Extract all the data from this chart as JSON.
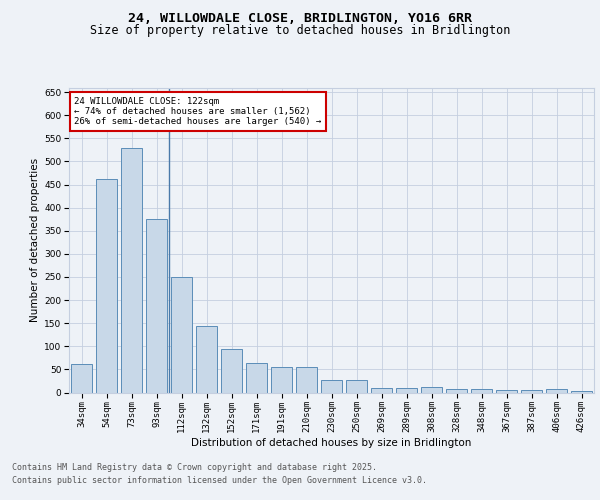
{
  "title_line1": "24, WILLOWDALE CLOSE, BRIDLINGTON, YO16 6RR",
  "title_line2": "Size of property relative to detached houses in Bridlington",
  "xlabel": "Distribution of detached houses by size in Bridlington",
  "ylabel": "Number of detached properties",
  "categories": [
    "34sqm",
    "54sqm",
    "73sqm",
    "93sqm",
    "112sqm",
    "132sqm",
    "152sqm",
    "171sqm",
    "191sqm",
    "210sqm",
    "230sqm",
    "250sqm",
    "269sqm",
    "289sqm",
    "308sqm",
    "328sqm",
    "348sqm",
    "367sqm",
    "387sqm",
    "406sqm",
    "426sqm"
  ],
  "values": [
    62,
    463,
    530,
    375,
    250,
    143,
    94,
    63,
    56,
    55,
    28,
    27,
    10,
    10,
    11,
    8,
    8,
    5,
    5,
    7,
    4
  ],
  "bar_color": "#c8d8e8",
  "bar_edge_color": "#5b8db8",
  "annotation_line1": "24 WILLOWDALE CLOSE: 122sqm",
  "annotation_line2": "← 74% of detached houses are smaller (1,562)",
  "annotation_line3": "26% of semi-detached houses are larger (540) →",
  "vline_bin": 4,
  "ylim": [
    0,
    660
  ],
  "yticks": [
    0,
    50,
    100,
    150,
    200,
    250,
    300,
    350,
    400,
    450,
    500,
    550,
    600,
    650
  ],
  "footer_line1": "Contains HM Land Registry data © Crown copyright and database right 2025.",
  "footer_line2": "Contains public sector information licensed under the Open Government Licence v3.0.",
  "bg_color": "#eef2f7",
  "grid_color": "#c5cfe0",
  "annotation_box_color": "#cc0000",
  "title_fontsize": 9.5,
  "subtitle_fontsize": 8.5,
  "axis_label_fontsize": 7.5,
  "tick_fontsize": 6.5,
  "annotation_fontsize": 6.5,
  "footer_fontsize": 6.0
}
